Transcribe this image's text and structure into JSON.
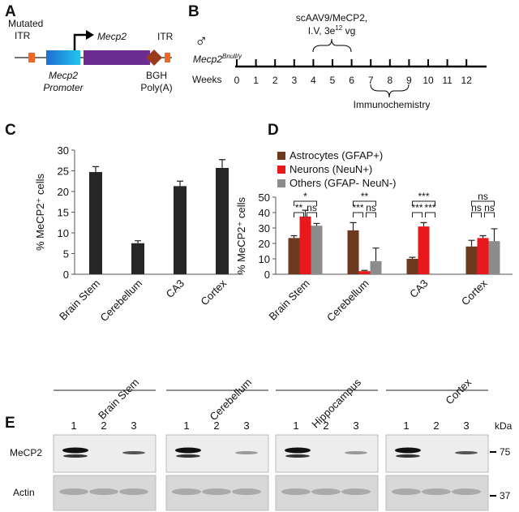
{
  "panel_labels": [
    "A",
    "B",
    "C",
    "D",
    "E"
  ],
  "construct": {
    "itr_left": [
      "Mutated",
      "ITR"
    ],
    "gene": "Mecp2",
    "itr_right": "ITR",
    "promoter": [
      "Mecp2",
      "Promoter"
    ],
    "polya": [
      "BGH",
      "Poly(A)"
    ]
  },
  "timeline": {
    "symbol": "♂",
    "mouse": "Mecp2",
    "mouse_sup": "Bnull/y",
    "injection_line1": "scAAV9/MeCP2,",
    "injection_line2": [
      "I.V, 3e",
      "12",
      " vg"
    ],
    "axis_label": "Weeks",
    "weeks": [
      0,
      1,
      2,
      3,
      4,
      5,
      6,
      7,
      8,
      9,
      10,
      11,
      12
    ],
    "assay": "Immunochemistry"
  },
  "chart_data": [
    {
      "type": "bar",
      "ylabel": "% MeCP2⁺ cells",
      "categories": [
        "Brain Stem",
        "Cerebellum",
        "CA3",
        "Cortex"
      ],
      "values": [
        24.7,
        7.5,
        21.3,
        25.7
      ],
      "errors": [
        1.3,
        0.6,
        1.2,
        2.0
      ],
      "color": "#262626",
      "ylim": [
        0,
        30
      ],
      "yticks": [
        0,
        5,
        10,
        15,
        20,
        25,
        30
      ]
    },
    {
      "type": "grouped_bar",
      "ylabel": "% MeCP2⁺ cells",
      "categories": [
        "Brain Stem",
        "Cerebellum",
        "CA3",
        "Cortex"
      ],
      "series": [
        {
          "name": "Astrocytes (GFAP+)",
          "color": "#6b3a1f",
          "values": [
            23.5,
            28.5,
            10,
            18
          ],
          "errors": [
            1.5,
            5,
            1,
            4
          ]
        },
        {
          "name": "Neurons (NeuN+)",
          "color": "#e8191c",
          "values": [
            37.5,
            2,
            31,
            23.5
          ],
          "errors": [
            4,
            0.5,
            2.5,
            1.5
          ]
        },
        {
          "name": "Others (GFAP- NeuN-)",
          "color": "#8c8c8c",
          "values": [
            31.5,
            8.5,
            null,
            21.5
          ],
          "errors": [
            1.5,
            8.5,
            null,
            8
          ]
        }
      ],
      "significance": [
        [
          "*",
          "**",
          "ns"
        ],
        [
          "**",
          "***",
          "ns"
        ],
        [
          "***",
          "***",
          "***"
        ],
        [
          "ns",
          "ns",
          "ns"
        ]
      ],
      "ylim": [
        0,
        50
      ],
      "yticks": [
        0,
        10,
        20,
        30,
        40,
        50
      ],
      "legend": "top-left"
    }
  ],
  "blot": {
    "regions": [
      "Brain Stem",
      "Cerebellum",
      "Hippocampus",
      "Cortex"
    ],
    "lanes": [
      "1",
      "2",
      "3"
    ],
    "unit": "kDa",
    "markers": [
      "75",
      "37"
    ],
    "rows": [
      "MeCP2",
      "Actin"
    ]
  }
}
